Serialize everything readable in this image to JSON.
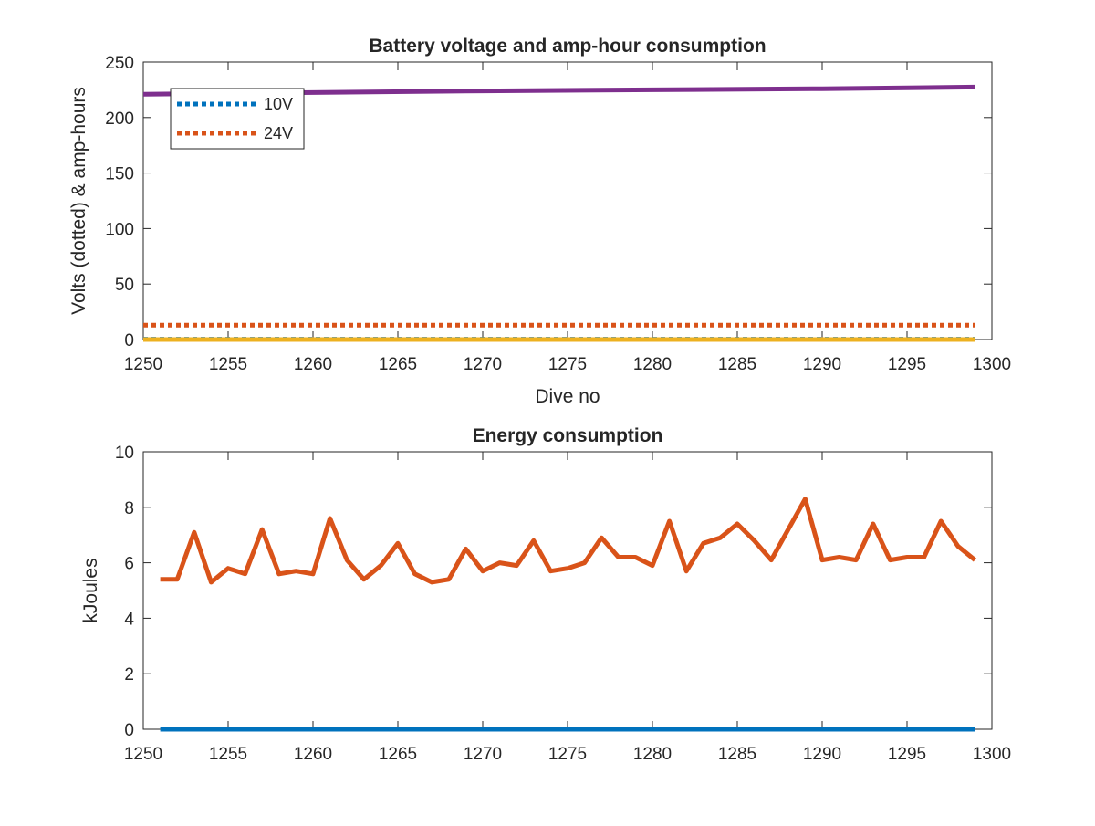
{
  "chart_data": [
    {
      "type": "line",
      "title": "Battery voltage and amp-hour consumption",
      "xlabel": "Dive no",
      "ylabel": "Volts (dotted) & amp-hours",
      "xlim": [
        1250,
        1300
      ],
      "ylim": [
        0,
        250
      ],
      "xticks": [
        "1250",
        "1255",
        "1260",
        "1265",
        "1270",
        "1275",
        "1280",
        "1285",
        "1290",
        "1295",
        "1300"
      ],
      "yticks": [
        "0",
        "50",
        "100",
        "150",
        "200",
        "250"
      ],
      "grid": false,
      "legend_position": "top-left",
      "series": [
        {
          "name": "10V",
          "style": "dotted",
          "color": "#0072BD",
          "x": [
            1250,
            1299
          ],
          "y": [
            0.3,
            0.3
          ]
        },
        {
          "name": "24V",
          "style": "dotted",
          "color": "#D95319",
          "x": [
            1250,
            1299
          ],
          "y": [
            13,
            13
          ]
        },
        {
          "style": "solid",
          "color": "#EDB120",
          "x": [
            1250,
            1299
          ],
          "y": [
            0,
            0
          ]
        },
        {
          "style": "solid",
          "color": "#7E2F8E",
          "x": [
            1250,
            1260,
            1270,
            1280,
            1290,
            1299
          ],
          "y": [
            221,
            222.5,
            224,
            225,
            226,
            227.5
          ]
        }
      ]
    },
    {
      "type": "line",
      "title": "Energy consumption",
      "xlabel": "",
      "ylabel": "kJoules",
      "xlim": [
        1250,
        1300
      ],
      "ylim": [
        0,
        10
      ],
      "xticks": [
        "1250",
        "1255",
        "1260",
        "1265",
        "1270",
        "1275",
        "1280",
        "1285",
        "1290",
        "1295",
        "1300"
      ],
      "yticks": [
        "0",
        "2",
        "4",
        "6",
        "8",
        "10"
      ],
      "grid": false,
      "series": [
        {
          "style": "solid",
          "color": "#0072BD",
          "x": [
            1251,
            1299
          ],
          "y": [
            0,
            0
          ]
        },
        {
          "style": "solid",
          "color": "#D95319",
          "x": [
            1251,
            1252,
            1253,
            1254,
            1255,
            1256,
            1257,
            1258,
            1259,
            1260,
            1261,
            1262,
            1263,
            1264,
            1265,
            1266,
            1267,
            1268,
            1269,
            1270,
            1271,
            1272,
            1273,
            1274,
            1275,
            1276,
            1277,
            1278,
            1279,
            1280,
            1281,
            1282,
            1283,
            1284,
            1285,
            1286,
            1287,
            1288,
            1289,
            1290,
            1291,
            1292,
            1293,
            1294,
            1295,
            1296,
            1297,
            1298,
            1299
          ],
          "y": [
            5.4,
            5.4,
            7.1,
            5.3,
            5.8,
            5.6,
            7.2,
            5.6,
            5.7,
            5.6,
            7.6,
            6.1,
            5.4,
            5.9,
            6.7,
            5.6,
            5.3,
            5.4,
            6.5,
            5.7,
            6.0,
            5.9,
            6.8,
            5.7,
            5.8,
            6.0,
            6.9,
            6.2,
            6.2,
            5.9,
            7.5,
            5.7,
            6.7,
            6.9,
            7.4,
            6.8,
            6.1,
            7.2,
            8.3,
            6.1,
            6.2,
            6.1,
            7.4,
            6.1,
            6.2,
            6.2,
            7.5,
            6.6,
            6.1
          ]
        }
      ]
    }
  ]
}
